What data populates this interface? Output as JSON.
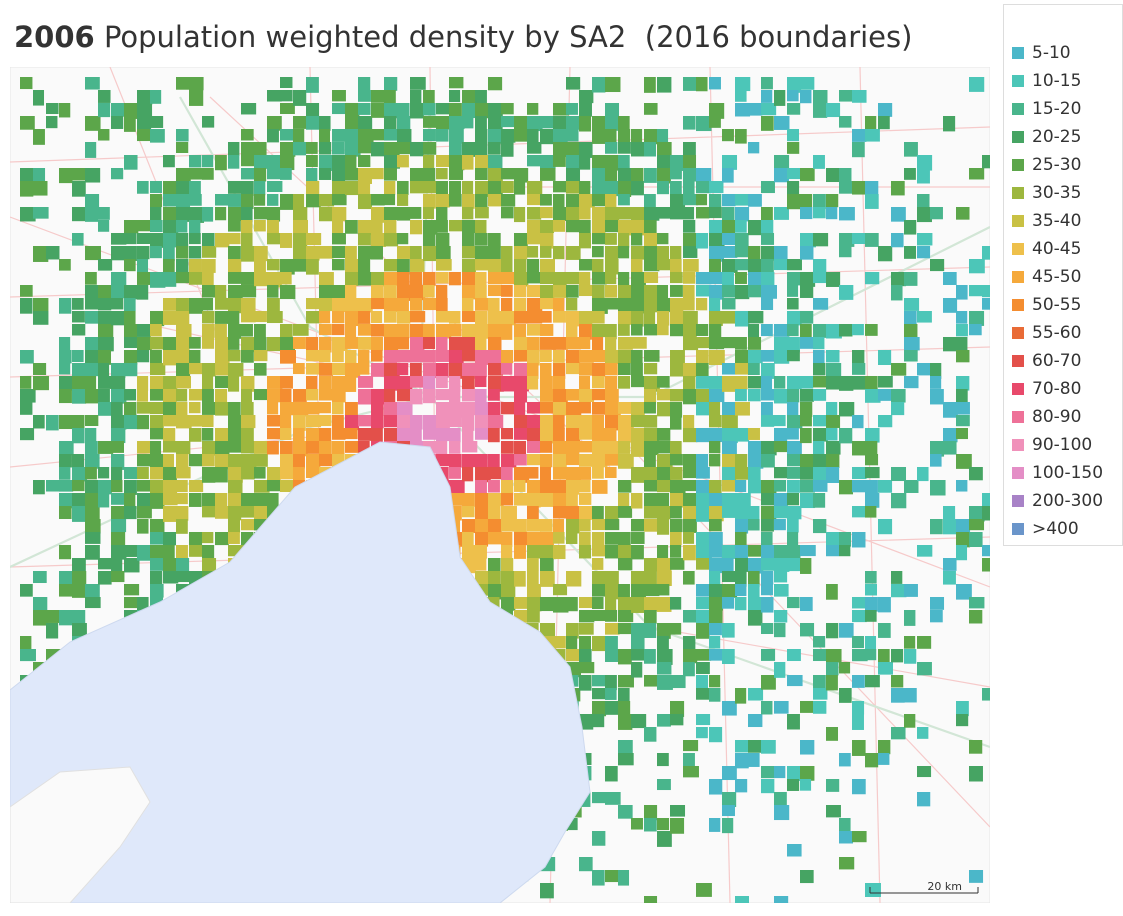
{
  "title": {
    "year": "2006",
    "text": "Population weighted density by SA2",
    "note": "(2016 boundaries)"
  },
  "legend": {
    "items": [
      {
        "label": "5-10",
        "color": "#4bb7c9"
      },
      {
        "label": "10-15",
        "color": "#4cc6b8"
      },
      {
        "label": "15-20",
        "color": "#49b58c"
      },
      {
        "label": "20-25",
        "color": "#46a463"
      },
      {
        "label": "25-30",
        "color": "#5ca64a"
      },
      {
        "label": "30-35",
        "color": "#9db73e"
      },
      {
        "label": "35-40",
        "color": "#c9c144"
      },
      {
        "label": "40-45",
        "color": "#eec04b"
      },
      {
        "label": "45-50",
        "color": "#f5a93b"
      },
      {
        "label": "50-55",
        "color": "#f48d30"
      },
      {
        "label": "55-60",
        "color": "#e96b36"
      },
      {
        "label": "60-70",
        "color": "#e3504a"
      },
      {
        "label": "70-80",
        "color": "#e8496b"
      },
      {
        "label": "80-90",
        "color": "#ee7198"
      },
      {
        "label": "90-100",
        "color": "#f091ba"
      },
      {
        "label": "100-150",
        "color": "#e48ec6"
      },
      {
        "label": "200-300",
        "color": "#a882c7"
      },
      {
        "label": ">400",
        "color": "#6a95ca"
      }
    ]
  },
  "scale_bar": "20 km"
}
